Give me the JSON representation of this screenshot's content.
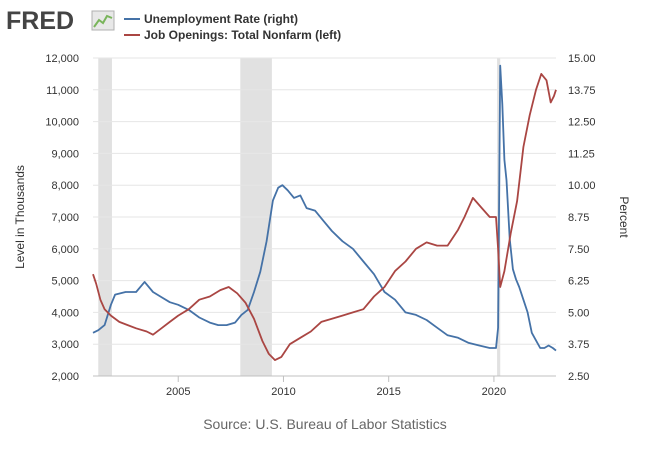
{
  "header": {
    "logo_text": "FRED",
    "legend": [
      {
        "label": "Unemployment Rate (right)",
        "color": "#4572a7"
      },
      {
        "label": "Job Openings: Total Nonfarm (left)",
        "color": "#aa4643"
      }
    ]
  },
  "source": "Source: U.S. Bureau of Labor Statistics",
  "chart_data": {
    "type": "line",
    "ylabel_left": "Level in Thousands",
    "ylabel_right": "Percent",
    "xlim": [
      2000.95,
      2022.95
    ],
    "ylim_left": [
      2000,
      12000
    ],
    "ylim_right": [
      2.5,
      15.0
    ],
    "x_ticks": [
      "2005",
      "2010",
      "2015",
      "2020"
    ],
    "y_left_ticks": [
      "2,000",
      "3,000",
      "4,000",
      "5,000",
      "6,000",
      "7,000",
      "8,000",
      "9,000",
      "10,000",
      "11,000",
      "12,000"
    ],
    "y_right_ticks": [
      "2.50",
      "3.75",
      "5.00",
      "6.25",
      "7.50",
      "8.75",
      "10.00",
      "11.25",
      "12.50",
      "13.75",
      "15.00"
    ],
    "grid": "horizontal",
    "recessions": [
      [
        2001.2,
        2001.85
      ],
      [
        2007.95,
        2009.45
      ],
      [
        2020.15,
        2020.3
      ]
    ],
    "series": [
      {
        "name": "Unemployment Rate (right)",
        "axis": "right",
        "color": "#4572a7",
        "x": [
          2000.95,
          2001.2,
          2001.5,
          2001.8,
          2002.0,
          2002.5,
          2003.0,
          2003.4,
          2003.8,
          2004.2,
          2004.6,
          2005.0,
          2005.5,
          2006.0,
          2006.5,
          2006.9,
          2007.3,
          2007.7,
          2008.0,
          2008.3,
          2008.6,
          2008.9,
          2009.2,
          2009.5,
          2009.75,
          2009.95,
          2010.2,
          2010.5,
          2010.8,
          2011.1,
          2011.5,
          2011.9,
          2012.3,
          2012.8,
          2013.3,
          2013.8,
          2014.3,
          2014.8,
          2015.3,
          2015.8,
          2016.3,
          2016.8,
          2017.3,
          2017.8,
          2018.3,
          2018.8,
          2019.3,
          2019.8,
          2020.1,
          2020.2,
          2020.3,
          2020.4,
          2020.5,
          2020.6,
          2020.75,
          2020.9,
          2021.05,
          2021.2,
          2021.4,
          2021.6,
          2021.8,
          2022.0,
          2022.2,
          2022.4,
          2022.6,
          2022.8,
          2022.95
        ],
        "values": [
          4.2,
          4.3,
          4.5,
          5.3,
          5.7,
          5.8,
          5.8,
          6.2,
          5.8,
          5.6,
          5.4,
          5.3,
          5.1,
          4.8,
          4.6,
          4.5,
          4.5,
          4.6,
          4.9,
          5.1,
          5.8,
          6.6,
          7.8,
          9.4,
          9.9,
          10.0,
          9.8,
          9.5,
          9.6,
          9.1,
          9.0,
          8.6,
          8.2,
          7.8,
          7.5,
          7.0,
          6.5,
          5.8,
          5.5,
          5.0,
          4.9,
          4.7,
          4.4,
          4.1,
          4.0,
          3.8,
          3.7,
          3.6,
          3.6,
          4.4,
          14.7,
          13.2,
          11.0,
          10.2,
          7.9,
          6.7,
          6.3,
          6.0,
          5.5,
          5.0,
          4.2,
          3.9,
          3.6,
          3.6,
          3.7,
          3.6,
          3.5
        ]
      },
      {
        "name": "Job Openings: Total Nonfarm (left)",
        "axis": "left",
        "color": "#aa4643",
        "x": [
          2000.95,
          2001.1,
          2001.3,
          2001.5,
          2001.8,
          2002.2,
          2002.6,
          2003.0,
          2003.5,
          2003.8,
          2004.2,
          2004.6,
          2005.0,
          2005.5,
          2006.0,
          2006.5,
          2007.0,
          2007.4,
          2007.8,
          2008.2,
          2008.6,
          2009.0,
          2009.3,
          2009.6,
          2009.9,
          2010.3,
          2010.8,
          2011.3,
          2011.8,
          2012.3,
          2012.8,
          2013.3,
          2013.8,
          2014.3,
          2014.8,
          2015.3,
          2015.8,
          2016.3,
          2016.8,
          2017.3,
          2017.8,
          2018.3,
          2018.6,
          2019.0,
          2019.4,
          2019.8,
          2020.1,
          2020.2,
          2020.3,
          2020.5,
          2020.8,
          2021.1,
          2021.4,
          2021.7,
          2022.0,
          2022.25,
          2022.5,
          2022.7,
          2022.85,
          2022.95
        ],
        "values": [
          5200,
          4900,
          4400,
          4100,
          3900,
          3700,
          3600,
          3500,
          3400,
          3300,
          3500,
          3700,
          3900,
          4100,
          4400,
          4500,
          4700,
          4800,
          4600,
          4300,
          3800,
          3100,
          2700,
          2500,
          2600,
          3000,
          3200,
          3400,
          3700,
          3800,
          3900,
          4000,
          4100,
          4500,
          4800,
          5300,
          5600,
          6000,
          6200,
          6100,
          6100,
          6600,
          7000,
          7600,
          7300,
          7000,
          7000,
          6000,
          4800,
          5300,
          6500,
          7500,
          9200,
          10200,
          11000,
          11500,
          11300,
          10600,
          10800,
          11000
        ]
      }
    ]
  }
}
